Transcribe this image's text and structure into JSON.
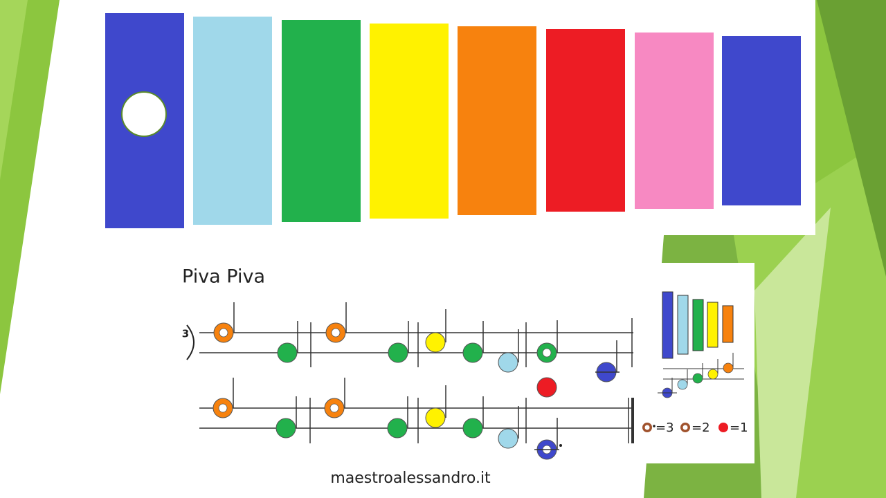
{
  "title": "Piva Piva",
  "time_signature": "3",
  "legend": [
    "=3",
    "=2",
    "=1"
  ],
  "footer": "maestroalessandro.it"
}
